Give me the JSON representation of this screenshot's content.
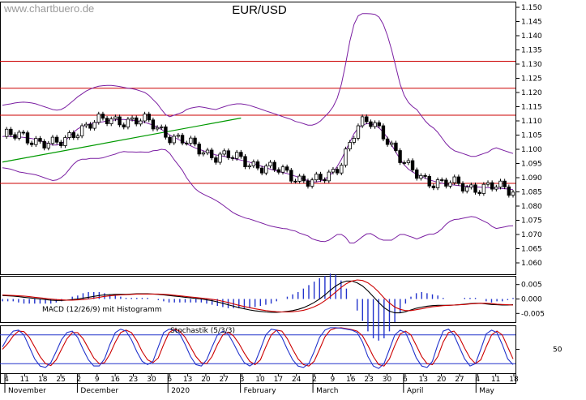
{
  "watermark": "www.chartbuero.de",
  "title": "EUR/USD",
  "colors": {
    "resistance": "#cc0000",
    "trendline": "#009900",
    "bollinger": "#7b1fa2",
    "candle_up": "#ffffff",
    "candle_down": "#000000",
    "macd_line": "#000000",
    "signal_line": "#cc0000",
    "histogram": "#2233cc",
    "stoch_k": "#2233cc",
    "stoch_d": "#cc0000",
    "grid": "#cfcfcf"
  },
  "chart_data": [
    {
      "type": "candlestick",
      "title": "EUR/USD",
      "ylim": [
        1.056,
        1.152
      ],
      "yticks": [
        "1.060",
        "1.065",
        "1.070",
        "1.075",
        "1.080",
        "1.085",
        "1.090",
        "1.095",
        "1.100",
        "1.105",
        "1.110",
        "1.115",
        "1.120",
        "1.125",
        "1.130",
        "1.135",
        "1.140",
        "1.145",
        "1.150"
      ],
      "horizontal_lines": [
        1.088,
        1.112,
        1.1215,
        1.131
      ],
      "trendline": [
        [
          0,
          1.0955
        ],
        [
          57,
          1.111
        ]
      ],
      "series": [
        {
          "name": "Upper Band",
          "values": [
            1.1155,
            1.1158,
            1.116,
            1.1163,
            1.1165,
            1.1166,
            1.1165,
            1.1163,
            1.116,
            1.1155,
            1.115,
            1.1145,
            1.114,
            1.1138,
            1.114,
            1.1148,
            1.116,
            1.1172,
            1.1185,
            1.1195,
            1.1205,
            1.1212,
            1.1218,
            1.1222,
            1.1224,
            1.1225,
            1.1225,
            1.1223,
            1.1221,
            1.1218,
            1.1215,
            1.1213,
            1.121,
            1.1205,
            1.12,
            1.119,
            1.1175,
            1.116,
            1.114,
            1.1122,
            1.1115,
            1.112,
            1.1125,
            1.113,
            1.114,
            1.1145,
            1.1148,
            1.115,
            1.1148,
            1.1145,
            1.1142,
            1.114,
            1.1145,
            1.115,
            1.1155,
            1.1158,
            1.116,
            1.116,
            1.1158,
            1.1155,
            1.115,
            1.1145,
            1.114,
            1.1135,
            1.113,
            1.1125,
            1.112,
            1.1115,
            1.111,
            1.1105,
            1.1098,
            1.1095,
            1.109,
            1.1085,
            1.1085,
            1.109,
            1.11,
            1.1115,
            1.113,
            1.115,
            1.118,
            1.123,
            1.13,
            1.138,
            1.144,
            1.147,
            1.1478,
            1.1478,
            1.1477,
            1.1475,
            1.1465,
            1.144,
            1.14,
            1.135,
            1.129,
            1.123,
            1.119,
            1.1165,
            1.115,
            1.114,
            1.112,
            1.11,
            1.1085,
            1.1075,
            1.106,
            1.104,
            1.102,
            1.1005,
            1.0995,
            1.099,
            1.0985,
            1.098,
            1.0975,
            1.0975,
            1.098,
            1.0985,
            1.099,
            1.1,
            1.1005,
            1.1,
            1.0995,
            1.099,
            1.0985
          ]
        },
        {
          "name": "Middle Band",
          "values": [
            1.1045,
            1.1046,
            1.1045,
            1.1044,
            1.1043,
            1.1042,
            1.104,
            1.1038,
            1.1035,
            1.103,
            1.1025,
            1.102,
            1.1015,
            1.1015,
            1.102,
            1.103,
            1.1045,
            1.106,
            1.1072,
            1.108,
            1.1085,
            1.109,
            1.1093,
            1.1095,
            1.1097,
            1.11,
            1.1102,
            1.1103,
            1.1105,
            1.1105,
            1.1103,
            1.1102,
            1.11,
            1.1098,
            1.1095,
            1.109,
            1.1085,
            1.1078,
            1.107,
            1.106,
            1.105,
            1.1042,
            1.1035,
            1.1028,
            1.102,
            1.1012,
            1.1005,
            1.1,
            1.0995,
            1.099,
            1.0985,
            1.098,
            1.0978,
            1.0975,
            1.0972,
            1.0968,
            1.0965,
            1.0962,
            1.0958,
            1.0955,
            1.095,
            1.0945,
            1.094,
            1.0935,
            1.093,
            1.0926,
            1.0922,
            1.0918,
            1.0915,
            1.091,
            1.0905,
            1.09,
            1.0895,
            1.089,
            1.0885,
            1.0885,
            1.0888,
            1.0895,
            1.0905,
            1.092,
            1.094,
            1.0965,
            1.0995,
            1.1025,
            1.1055,
            1.1075,
            1.1085,
            1.109,
            1.109,
            1.1085,
            1.1075,
            1.106,
            1.104,
            1.1015,
            1.099,
            1.0965,
            1.0945,
            1.093,
            1.092,
            1.0912,
            1.0905,
            1.0898,
            1.0893,
            1.0888,
            1.0884,
            1.088,
            1.0878,
            1.0876,
            1.0874,
            1.0872,
            1.0871,
            1.087,
            1.0869,
            1.0868,
            1.0867,
            1.0866,
            1.0865,
            1.0864,
            1.0863,
            1.0862,
            1.0861,
            1.086,
            1.0858
          ]
        },
        {
          "name": "Lower Band",
          "values": [
            1.0935,
            1.0933,
            1.093,
            1.0925,
            1.092,
            1.0918,
            1.0915,
            1.0913,
            1.091,
            1.0905,
            1.09,
            1.0895,
            1.089,
            1.0892,
            1.09,
            1.0912,
            1.093,
            1.0948,
            1.096,
            1.0965,
            1.0965,
            1.0968,
            1.0968,
            1.0968,
            1.097,
            1.0975,
            1.0979,
            1.0983,
            1.0989,
            1.0992,
            1.0991,
            1.0991,
            1.099,
            1.0991,
            1.099,
            1.099,
            1.0995,
            1.0996,
            1.1,
            1.0998,
            1.0985,
            1.0964,
            1.0945,
            1.0926,
            1.09,
            1.088,
            1.0862,
            1.085,
            1.0842,
            1.0835,
            1.0828,
            1.082,
            1.0811,
            1.08,
            1.0789,
            1.0778,
            1.077,
            1.0764,
            1.0758,
            1.0755,
            1.075,
            1.0745,
            1.074,
            1.0735,
            1.073,
            1.0727,
            1.0724,
            1.0721,
            1.072,
            1.0715,
            1.0712,
            1.0705,
            1.07,
            1.0695,
            1.0685,
            1.068,
            1.0676,
            1.0675,
            1.068,
            1.069,
            1.07,
            1.07,
            1.069,
            1.067,
            1.067,
            1.068,
            1.0692,
            1.0702,
            1.0703,
            1.0695,
            1.0685,
            1.068,
            1.068,
            1.068,
            1.069,
            1.07,
            1.07,
            1.0695,
            1.069,
            1.0684,
            1.069,
            1.0696,
            1.0701,
            1.0701,
            1.0708,
            1.072,
            1.0736,
            1.0747,
            1.0753,
            1.0754,
            1.0757,
            1.076,
            1.0763,
            1.0761,
            1.0754,
            1.0747,
            1.074,
            1.0728,
            1.0721,
            1.0724,
            1.0727,
            1.073,
            1.0731
          ]
        }
      ]
    },
    {
      "type": "line",
      "title": "MACD (12/26/9) mit Histogramm",
      "ylim": [
        -0.008,
        0.008
      ],
      "yticks": [
        "0.005",
        "0.000",
        "-0.005"
      ],
      "series": [
        {
          "name": "MACD",
          "values": [
            0.0012,
            0.0011,
            0.001,
            0.0008,
            0.0006,
            0.0004,
            0.0002,
            0.0,
            -0.0002,
            -0.0004,
            -0.0005,
            -0.0005,
            -0.0004,
            -0.0002,
            0.0,
            0.0003,
            0.0006,
            0.0009,
            0.0012,
            0.0014,
            0.0015,
            0.0016,
            0.0016,
            0.0016,
            0.0017,
            0.0018,
            0.0018,
            0.0018,
            0.0017,
            0.0016,
            0.0014,
            0.0012,
            0.001,
            0.0008,
            0.0006,
            0.0004,
            0.0002,
            0.0,
            -0.0003,
            -0.0006,
            -0.001,
            -0.0015,
            -0.002,
            -0.0025,
            -0.003,
            -0.0034,
            -0.0038,
            -0.0041,
            -0.0043,
            -0.0045,
            -0.0046,
            -0.0046,
            -0.0045,
            -0.0043,
            -0.004,
            -0.0036,
            -0.003,
            -0.0022,
            -0.0012,
            0.0,
            0.0014,
            0.003,
            0.0045,
            0.0056,
            0.0062,
            0.0062,
            0.0056,
            0.0045,
            0.0028,
            0.0008,
            -0.0012,
            -0.003,
            -0.0042,
            -0.0048,
            -0.0048,
            -0.0044,
            -0.0038,
            -0.0032,
            -0.0028,
            -0.0025,
            -0.0023,
            -0.0022,
            -0.0022,
            -0.0022,
            -0.0021,
            -0.002,
            -0.0018,
            -0.0016,
            -0.0015,
            -0.0015,
            -0.0017,
            -0.0019,
            -0.002,
            -0.0021,
            -0.0021,
            -0.002
          ]
        },
        {
          "name": "Signal",
          "values": [
            0.0014,
            0.0013,
            0.0012,
            0.0011,
            0.001,
            0.0008,
            0.0006,
            0.0004,
            0.0002,
            0.0,
            -0.0002,
            -0.0003,
            -0.0004,
            -0.0004,
            -0.0003,
            -0.0002,
            0.0,
            0.0003,
            0.0006,
            0.0009,
            0.0011,
            0.0013,
            0.0014,
            0.0015,
            0.0016,
            0.0017,
            0.0017,
            0.0017,
            0.0017,
            0.0017,
            0.0016,
            0.0015,
            0.0013,
            0.0011,
            0.0009,
            0.0007,
            0.0005,
            0.0003,
            0.0001,
            -0.0001,
            -0.0004,
            -0.0008,
            -0.0012,
            -0.0017,
            -0.0022,
            -0.0026,
            -0.003,
            -0.0034,
            -0.0037,
            -0.004,
            -0.0042,
            -0.0044,
            -0.0045,
            -0.0045,
            -0.0044,
            -0.0042,
            -0.0039,
            -0.0034,
            -0.0027,
            -0.0018,
            -0.0006,
            0.0008,
            0.0024,
            0.004,
            0.0053,
            0.0062,
            0.0066,
            0.0064,
            0.0056,
            0.0042,
            0.0024,
            0.0004,
            -0.0014,
            -0.0028,
            -0.0036,
            -0.004,
            -0.004,
            -0.0037,
            -0.0034,
            -0.003,
            -0.0027,
            -0.0025,
            -0.0023,
            -0.0022,
            -0.0021,
            -0.002,
            -0.0019,
            -0.0017,
            -0.0016,
            -0.0015,
            -0.0015,
            -0.0016,
            -0.0018,
            -0.0019,
            -0.002,
            -0.0021
          ]
        }
      ]
    },
    {
      "type": "line",
      "title": "Stochastik (5/3/3)",
      "ylim": [
        0,
        100
      ],
      "yticks": [
        "50"
      ],
      "reference_lines": [
        80,
        20
      ],
      "series": [
        {
          "name": "%K",
          "values": [
            55,
            75,
            88,
            90,
            80,
            55,
            30,
            15,
            12,
            22,
            45,
            70,
            85,
            88,
            75,
            50,
            28,
            15,
            15,
            30,
            60,
            85,
            92,
            88,
            70,
            45,
            25,
            18,
            25,
            55,
            85,
            92,
            90,
            82,
            60,
            35,
            18,
            15,
            28,
            55,
            80,
            88,
            82,
            62,
            40,
            22,
            15,
            22,
            50,
            80,
            92,
            90,
            75,
            50,
            28,
            15,
            12,
            20,
            45,
            75,
            90,
            95,
            95,
            94,
            92,
            90,
            85,
            65,
            35,
            15,
            10,
            20,
            50,
            80,
            90,
            85,
            60,
            32,
            15,
            12,
            25,
            60,
            88,
            92,
            80,
            55,
            30,
            15,
            20,
            50,
            82,
            90,
            85,
            60,
            30,
            18
          ]
        },
        {
          "name": "%D",
          "values": [
            50,
            62,
            78,
            88,
            87,
            75,
            55,
            35,
            20,
            16,
            28,
            50,
            72,
            85,
            85,
            72,
            52,
            32,
            20,
            22,
            40,
            65,
            85,
            90,
            85,
            68,
            45,
            28,
            22,
            32,
            60,
            85,
            92,
            88,
            75,
            55,
            35,
            22,
            20,
            35,
            60,
            80,
            86,
            78,
            62,
            42,
            25,
            18,
            28,
            55,
            80,
            90,
            88,
            72,
            50,
            30,
            18,
            15,
            25,
            50,
            76,
            90,
            94,
            95,
            93,
            91,
            88,
            78,
            58,
            35,
            18,
            15,
            30,
            58,
            82,
            88,
            80,
            58,
            35,
            20,
            18,
            35,
            65,
            85,
            88,
            75,
            52,
            32,
            20,
            28,
            55,
            80,
            88,
            80,
            55,
            30
          ]
        }
      ]
    }
  ],
  "x_axis": {
    "day_ticks": [
      "4",
      "11",
      "18",
      "25",
      "2",
      "9",
      "16",
      "23",
      "30",
      "6",
      "13",
      "20",
      "27",
      "3",
      "10",
      "17",
      "24",
      "2",
      "9",
      "16",
      "23",
      "30",
      "6",
      "13",
      "20",
      "27",
      "4",
      "11",
      "18"
    ],
    "month_labels": [
      "November",
      "December",
      "2020",
      "February",
      "March",
      "April",
      "May"
    ]
  }
}
